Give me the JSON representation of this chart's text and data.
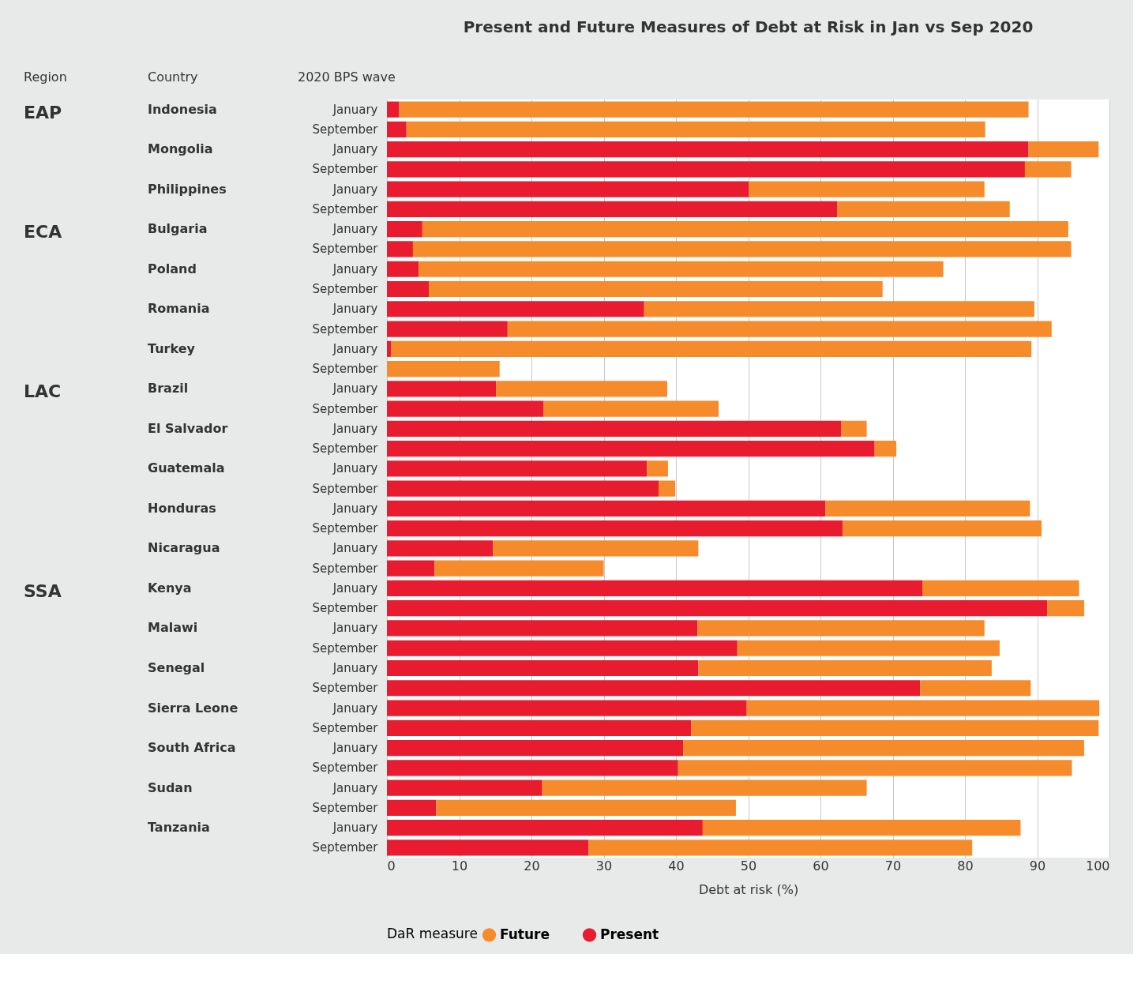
{
  "chart_data": {
    "type": "bar",
    "orientation": "horizontal",
    "stacked": true,
    "title": "Present and Future Measures of Debt at Risk in Jan vs Sep 2020",
    "xlabel": "Debt at risk (%)",
    "legend_title": "DaR measure",
    "categories": [
      "January",
      "September",
      "January",
      "September",
      "January",
      "September",
      "January",
      "September",
      "January",
      "September",
      "January",
      "September",
      "January",
      "September",
      "January",
      "September",
      "January",
      "September",
      "January",
      "September",
      "January",
      "September",
      "January",
      "September",
      "January",
      "September",
      "January",
      "September",
      "January",
      "September",
      "January",
      "September",
      "January",
      "September",
      "January",
      "September",
      "January",
      "September"
    ],
    "series": [
      {
        "name": "Present",
        "color": "#e81c2e",
        "values": [
          1.7,
          2.7,
          88.8,
          88.3,
          50.1,
          62.3,
          4.9,
          3.6,
          4.4,
          5.8,
          35.6,
          16.7,
          0.6,
          0,
          15.1,
          21.7,
          62.9,
          67.5,
          36.0,
          37.6,
          60.7,
          63.1,
          14.7,
          6.6,
          74.1,
          91.4,
          43.0,
          48.5,
          43.1,
          73.8,
          49.8,
          42.1,
          41.0,
          40.3,
          21.5,
          6.8,
          43.7,
          27.9
        ]
      },
      {
        "name": "Future",
        "color": "#f68b2c",
        "values": [
          87.1,
          80.1,
          9.7,
          6.4,
          32.6,
          23.9,
          89.4,
          91.1,
          72.6,
          62.8,
          54.0,
          75.3,
          88.6,
          15.6,
          23.7,
          24.2,
          3.5,
          3.0,
          2.9,
          2.3,
          28.3,
          27.5,
          28.4,
          23.4,
          21.7,
          5.1,
          39.7,
          36.3,
          40.6,
          15.3,
          48.8,
          56.4,
          55.5,
          54.5,
          44.9,
          41.5,
          44.0,
          53.1
        ]
      }
    ],
    "xlim": [
      0,
      100
    ],
    "xticks": [
      0,
      10,
      20,
      30,
      40,
      50,
      60,
      70,
      80,
      90,
      100
    ],
    "grid": "x",
    "legend": "bottom",
    "annotations": [
      "Region",
      "Country",
      "2020 BPS wave",
      "EAP",
      "ECA",
      "LAC",
      "SSA",
      "Indonesia",
      "Mongolia",
      "Philippines",
      "Bulgaria",
      "Poland",
      "Romania",
      "Turkey",
      "Brazil",
      "El Salvador",
      "Guatemala",
      "Honduras",
      "Nicaragua",
      "Kenya",
      "Malawi",
      "Senegal",
      "Sierra Leone",
      "South Africa",
      "Sudan",
      "Tanzania"
    ]
  }
}
